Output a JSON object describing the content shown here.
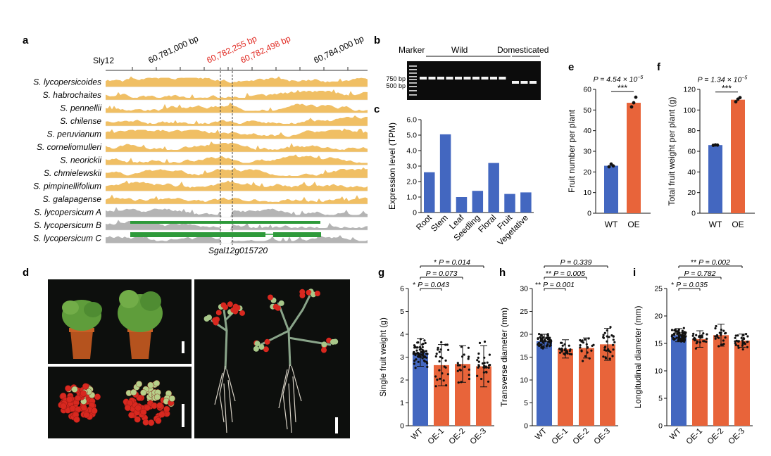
{
  "panel_letters": {
    "a": "a",
    "b": "b",
    "c": "c",
    "d": "d",
    "e": "e",
    "f": "f",
    "g": "g",
    "h": "h",
    "i": "i"
  },
  "panel_a": {
    "chrom": "Sly12",
    "coords": [
      "60,781,000 bp",
      "60,782,255 bp",
      "60,782,498 bp",
      "60,784,000 bp"
    ],
    "highlight_color": "#e0261e",
    "species": [
      {
        "name": "S. lycopersicoides",
        "color": "#f0bf64",
        "kind": "wild",
        "seed": 1
      },
      {
        "name": "S. habrochaites",
        "color": "#f0bf64",
        "kind": "wild",
        "seed": 2
      },
      {
        "name": "S. pennellii",
        "color": "#f0bf64",
        "kind": "wild",
        "seed": 3
      },
      {
        "name": "S. chilense",
        "color": "#f0bf64",
        "kind": "wild",
        "seed": 4
      },
      {
        "name": "S. peruvianum",
        "color": "#f0bf64",
        "kind": "wild",
        "seed": 5
      },
      {
        "name": "S. corneliomulleri",
        "color": "#f0bf64",
        "kind": "wild",
        "seed": 6
      },
      {
        "name": "S. neorickii",
        "color": "#f0bf64",
        "kind": "wild",
        "seed": 7
      },
      {
        "name": "S. chmielewskii",
        "color": "#f0bf64",
        "kind": "wild",
        "seed": 8
      },
      {
        "name": "S. pimpinellifolium",
        "color": "#f0bf64",
        "kind": "wild",
        "seed": 9
      },
      {
        "name": "S. galapagense",
        "color": "#f0bf64",
        "kind": "wild",
        "seed": 10
      },
      {
        "name": "S. lycopersicum A",
        "color": "#b4b4b4",
        "kind": "dom",
        "seed": 11
      },
      {
        "name": "S. lycopersicum B",
        "color": "#b4b4b4",
        "kind": "dom",
        "seed": 12
      },
      {
        "name": "S. lycopersicum C",
        "color": "#b4b4b4",
        "kind": "dom",
        "seed": 13
      }
    ],
    "gene": "Sgal12g015720",
    "gene_color": "#2e9a3a"
  },
  "panel_b": {
    "header_marker": "Marker",
    "header_wild": "Wild",
    "header_dom": "Domesticated",
    "size_750": "750 bp",
    "size_500": "500 bp",
    "wild_lanes": 10,
    "dom_lanes": 3
  },
  "panel_d": {
    "description_free": true
  },
  "colors": {
    "wt": "#4367c0",
    "oe": "#e8643a",
    "bar_c": "#4367c0"
  },
  "chart_data": [
    {
      "id": "c",
      "type": "bar",
      "ylabel": "Expression level (TPM)",
      "categories": [
        "Root",
        "Stem",
        "Leaf",
        "Seedling",
        "Floral",
        "Fruit",
        "Vegetative"
      ],
      "values": [
        2.6,
        5.05,
        1.0,
        1.4,
        3.2,
        1.2,
        1.3
      ],
      "yticks": [
        "0",
        "1.0",
        "2.0",
        "3.0",
        "4.0",
        "5.0",
        "6.0"
      ],
      "ylim": [
        0,
        6
      ]
    },
    {
      "id": "e",
      "type": "bar",
      "ylabel": "Fruit number per plant",
      "categories": [
        "WT",
        "OE"
      ],
      "values": [
        23,
        53.5
      ],
      "points": [
        [
          22.5,
          23.8,
          22.9
        ],
        [
          51.5,
          53.5,
          56.2
        ]
      ],
      "yticks": [
        "0",
        "10",
        "20",
        "30",
        "40",
        "50",
        "60"
      ],
      "ylim": [
        0,
        60
      ],
      "p_label": "P = 4.54 × 10",
      "p_exp": "−5",
      "stars": "***"
    },
    {
      "id": "f",
      "type": "bar",
      "ylabel": "Total fruit weight per plant (g)",
      "categories": [
        "WT",
        "OE"
      ],
      "values": [
        66,
        110
      ],
      "points": [
        [
          65.8,
          66.2,
          66.0
        ],
        [
          108,
          110.5,
          112
        ]
      ],
      "yticks": [
        "0",
        "20",
        "40",
        "60",
        "80",
        "100",
        "120"
      ],
      "ylim": [
        0,
        120
      ],
      "p_label": "P = 1.34 × 10",
      "p_exp": "−5",
      "stars": "***"
    },
    {
      "id": "g",
      "type": "bar",
      "ylabel": "Single fruit weight (g)",
      "categories": [
        "WT",
        "OE-1",
        "OE-2",
        "OE-3"
      ],
      "values": [
        3.2,
        2.65,
        2.7,
        2.6
      ],
      "sd": [
        0.6,
        0.9,
        0.8,
        0.9
      ],
      "n": [
        60,
        25,
        20,
        28
      ],
      "yticks": [
        "0",
        "1",
        "2",
        "3",
        "4",
        "5",
        "6"
      ],
      "ylim": [
        0,
        6
      ],
      "comparisons": [
        {
          "stars": "*",
          "text": "P = 0.043",
          "to": 1
        },
        {
          "stars": "",
          "text": "P = 0.073",
          "to": 2
        },
        {
          "stars": "*",
          "text": "P = 0.014",
          "to": 3
        }
      ]
    },
    {
      "id": "h",
      "type": "bar",
      "ylabel": "Transverse diameter (mm)",
      "categories": [
        "WT",
        "OE-1",
        "OE-2",
        "OE-3"
      ],
      "values": [
        18.5,
        16.8,
        17.0,
        17.8
      ],
      "sd": [
        1.5,
        2.0,
        2.2,
        3.5
      ],
      "n": [
        60,
        25,
        20,
        28
      ],
      "yticks": [
        "0",
        "5",
        "10",
        "15",
        "20",
        "25",
        "30"
      ],
      "ylim": [
        0,
        30
      ],
      "comparisons": [
        {
          "stars": "**",
          "text": "P = 0.001",
          "to": 1
        },
        {
          "stars": "**",
          "text": "P = 0.005",
          "to": 2
        },
        {
          "stars": "",
          "text": "P = 0.339",
          "to": 3
        }
      ]
    },
    {
      "id": "i",
      "type": "bar",
      "ylabel": "Longitudinal diameter (mm)",
      "categories": [
        "WT",
        "OE-1",
        "OE-2",
        "OE-3"
      ],
      "values": [
        16.5,
        15.8,
        16.5,
        15.5
      ],
      "sd": [
        1.2,
        1.5,
        2.0,
        1.2
      ],
      "n": [
        60,
        25,
        20,
        28
      ],
      "yticks": [
        "0",
        "5",
        "10",
        "15",
        "20",
        "25"
      ],
      "ylim": [
        0,
        25
      ],
      "comparisons": [
        {
          "stars": "*",
          "text": "P = 0.035",
          "to": 1
        },
        {
          "stars": "",
          "text": "P = 0.782",
          "to": 2
        },
        {
          "stars": "**",
          "text": "P = 0.002",
          "to": 3
        }
      ]
    }
  ]
}
